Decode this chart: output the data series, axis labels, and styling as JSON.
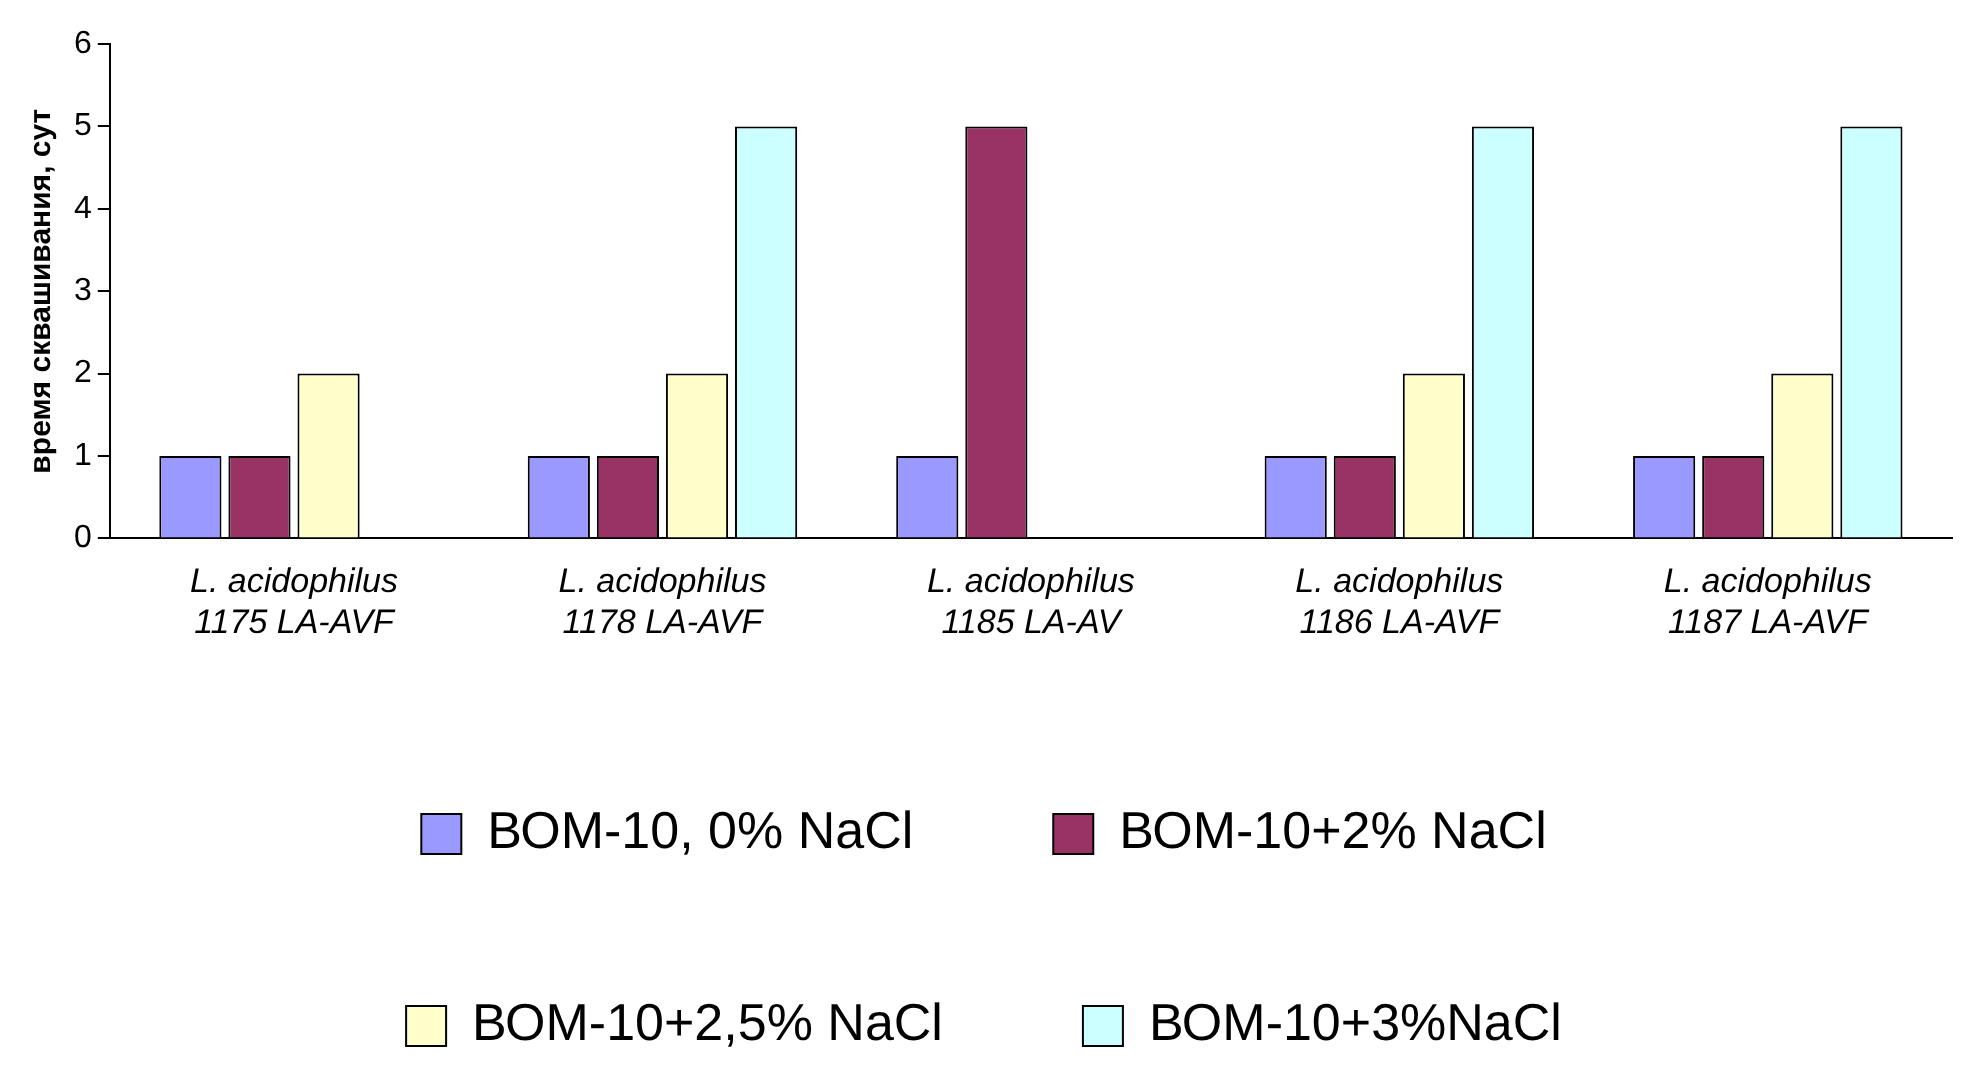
{
  "chart_data": {
    "type": "bar",
    "ylabel": "время сквашивания, сут",
    "categories": [
      "L. acidophilus\n1175 LA-AVF",
      "L. acidophilus\n1178 LA-AVF",
      "L. acidophilus\n1185 LA-AV",
      "L. acidophilus\n1186 LA-AVF",
      "L. acidophilus\n1187 LA-AVF"
    ],
    "series": [
      {
        "name": "ВОМ-10, 0% NaCl",
        "color": "#9999ff",
        "values": [
          1,
          1,
          1,
          1,
          1
        ]
      },
      {
        "name": "ВОМ-10+2% NaCl",
        "color": "#993366",
        "values": [
          1,
          1,
          5,
          1,
          1
        ]
      },
      {
        "name": "ВОМ-10+2,5% NaCl",
        "color": "#ffffcc",
        "values": [
          2,
          2,
          null,
          2,
          2
        ]
      },
      {
        "name": "ВОМ-10+3%NaCl",
        "color": "#ccffff",
        "values": [
          null,
          5,
          null,
          5,
          5
        ]
      }
    ],
    "ylim": [
      0,
      6
    ],
    "yticks": [
      0,
      1,
      2,
      3,
      4,
      5,
      6
    ],
    "grid": false,
    "legend": "bottom"
  }
}
